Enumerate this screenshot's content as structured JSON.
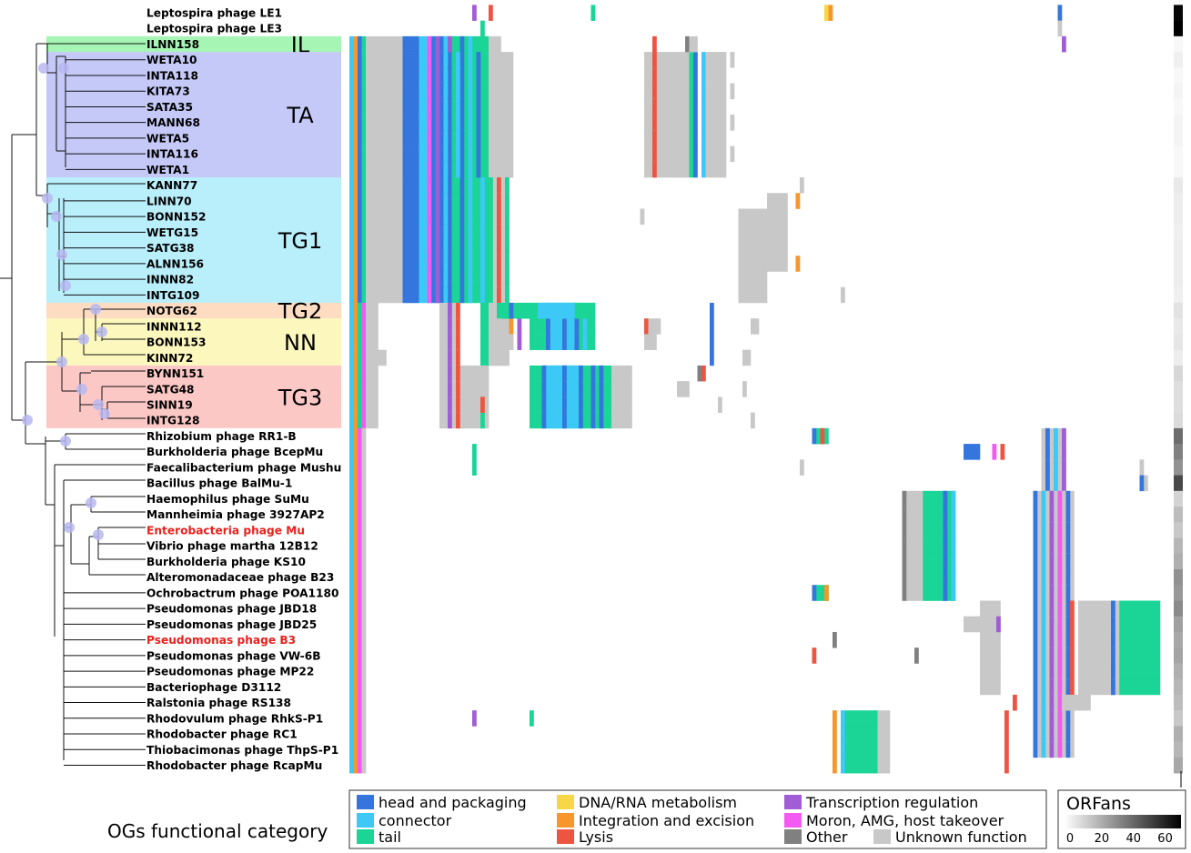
{
  "taxa": [
    {
      "name": "Leptospira phage LE1",
      "color": "#000000"
    },
    {
      "name": "Leptospira phage LE3",
      "color": "#000000"
    },
    {
      "name": "ILNN158",
      "color": "#000000"
    },
    {
      "name": "WETA10",
      "color": "#000000"
    },
    {
      "name": "INTA118",
      "color": "#000000"
    },
    {
      "name": "KITA73",
      "color": "#000000"
    },
    {
      "name": "SATA35",
      "color": "#000000"
    },
    {
      "name": "MANN68",
      "color": "#000000"
    },
    {
      "name": "WETA5",
      "color": "#000000"
    },
    {
      "name": "INTA116",
      "color": "#000000"
    },
    {
      "name": "WETA1",
      "color": "#000000"
    },
    {
      "name": "KANN77",
      "color": "#000000"
    },
    {
      "name": "LINN70",
      "color": "#000000"
    },
    {
      "name": "BONN152",
      "color": "#000000"
    },
    {
      "name": "WETG15",
      "color": "#000000"
    },
    {
      "name": "SATG38",
      "color": "#000000"
    },
    {
      "name": "ALNN156",
      "color": "#000000"
    },
    {
      "name": "INNN82",
      "color": "#000000"
    },
    {
      "name": "INTG109",
      "color": "#000000"
    },
    {
      "name": "NOTG62",
      "color": "#000000"
    },
    {
      "name": "INNN112",
      "color": "#000000"
    },
    {
      "name": "BONN153",
      "color": "#000000"
    },
    {
      "name": "KINN72",
      "color": "#000000"
    },
    {
      "name": "BYNN151",
      "color": "#000000"
    },
    {
      "name": "SATG48",
      "color": "#000000"
    },
    {
      "name": "SINN19",
      "color": "#000000"
    },
    {
      "name": "INTG128",
      "color": "#000000"
    },
    {
      "name": "Rhizobium phage RR1-B",
      "color": "#000000"
    },
    {
      "name": "Burkholderia phage BcepMu",
      "color": "#000000"
    },
    {
      "name": "Faecalibacterium phage Mushu",
      "color": "#000000"
    },
    {
      "name": "Bacillus phage BalMu-1",
      "color": "#000000"
    },
    {
      "name": "Haemophilus phage SuMu",
      "color": "#000000"
    },
    {
      "name": "Mannheimia phage 3927AP2",
      "color": "#000000"
    },
    {
      "name": "Enterobacteria phage Mu",
      "color": "#e8211c"
    },
    {
      "name": "Vibrio phage martha 12B12",
      "color": "#000000"
    },
    {
      "name": "Burkholderia phage KS10",
      "color": "#000000"
    },
    {
      "name": "Alteromonadaceae phage B23",
      "color": "#000000"
    },
    {
      "name": "Ochrobactrum phage POA1180",
      "color": "#000000"
    },
    {
      "name": "Pseudomonas phage JBD18",
      "color": "#000000"
    },
    {
      "name": "Pseudomonas phage JBD25",
      "color": "#000000"
    },
    {
      "name": "Pseudomonas phage B3",
      "color": "#e8211c"
    },
    {
      "name": "Pseudomonas phage VW-6B",
      "color": "#000000"
    },
    {
      "name": "Pseudomonas phage MP22",
      "color": "#000000"
    },
    {
      "name": "Bacteriophage D3112",
      "color": "#000000"
    },
    {
      "name": "Ralstonia phage RS138",
      "color": "#000000"
    },
    {
      "name": "Rhodovulum phage RhkS-P1",
      "color": "#000000"
    },
    {
      "name": "Rhodobacter phage RC1",
      "color": "#000000"
    },
    {
      "name": "Thiobacimonas phage ThpS-P1",
      "color": "#000000"
    },
    {
      "name": "Rhodobacter phage RcapMu",
      "color": "#000000"
    }
  ],
  "clades": [
    {
      "label": "IL",
      "color": "#a6f5b4",
      "first_row": 2,
      "last_row": 2
    },
    {
      "label": "TA",
      "color": "#c4c9f7",
      "first_row": 3,
      "last_row": 10
    },
    {
      "label": "TG1",
      "color": "#b9eefb",
      "first_row": 11,
      "last_row": 18
    },
    {
      "label": "TG2",
      "color": "#fddcc2",
      "first_row": 19,
      "last_row": 19
    },
    {
      "label": "NN",
      "color": "#fcf8bd",
      "first_row": 20,
      "last_row": 22
    },
    {
      "label": "TG3",
      "color": "#fbc8c6",
      "first_row": 23,
      "last_row": 26
    }
  ],
  "legend": {
    "title": "OGs functional category",
    "categories": [
      {
        "key": "head",
        "label": "head and packaging",
        "color": "#3476de"
      },
      {
        "key": "connector",
        "label": "connector",
        "color": "#3cc9f5"
      },
      {
        "key": "tail",
        "label": "tail",
        "color": "#1ad596"
      },
      {
        "key": "dna",
        "label": "DNA/RNA metabolism",
        "color": "#f7d748"
      },
      {
        "key": "integration",
        "label": "Integration and excision",
        "color": "#f6962b"
      },
      {
        "key": "lysis",
        "label": "Lysis",
        "color": "#ee5540"
      },
      {
        "key": "transcription",
        "label": "Transcription regulation",
        "color": "#a05dd6"
      },
      {
        "key": "moron",
        "label": "Moron, AMG, host takeover",
        "color": "#f25af2"
      },
      {
        "key": "other",
        "label": "Other",
        "color": "#808080"
      },
      {
        "key": "unknown",
        "label": "Unknown function",
        "color": "#c8c8c8"
      }
    ]
  },
  "orfans": {
    "title": "ORFans",
    "ticks": [
      "0",
      "20",
      "40",
      "60"
    ],
    "max": 70,
    "values": [
      68,
      70,
      2,
      4,
      2,
      3,
      2,
      3,
      3,
      2,
      2,
      6,
      5,
      5,
      4,
      5,
      5,
      5,
      4,
      8,
      6,
      7,
      5,
      11,
      9,
      9,
      10,
      40,
      35,
      30,
      50,
      12,
      18,
      15,
      20,
      22,
      30,
      28,
      32,
      26,
      24,
      25,
      22,
      20,
      18,
      15,
      22,
      20,
      24
    ]
  }
}
